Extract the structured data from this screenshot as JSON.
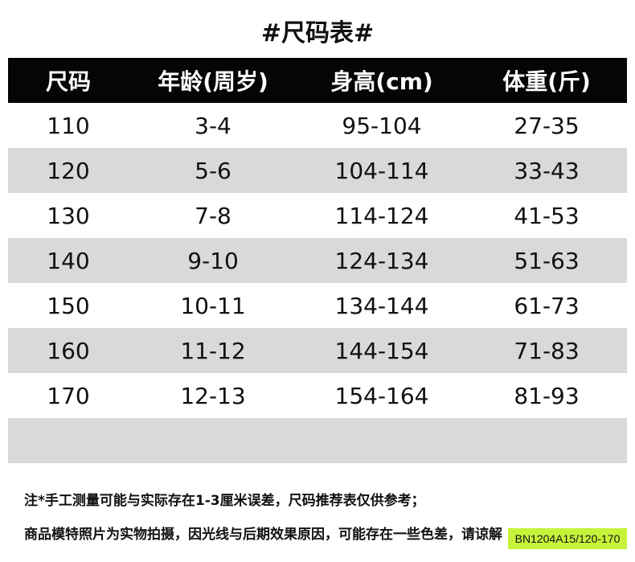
{
  "title": "#尺码表#",
  "headers": [
    "尺码",
    "年龄(周岁)",
    "身高(cm)",
    "体重(斤)"
  ],
  "rows": [
    [
      "110",
      "3-4",
      "95-104",
      "27-35"
    ],
    [
      "120",
      "5-6",
      "104-114",
      "33-43"
    ],
    [
      "130",
      "7-8",
      "114-124",
      "41-53"
    ],
    [
      "140",
      "9-10",
      "124-134",
      "51-63"
    ],
    [
      "150",
      "10-11",
      "134-144",
      "61-73"
    ],
    [
      "160",
      "11-12",
      "144-154",
      "71-83"
    ],
    [
      "170",
      "12-13",
      "154-164",
      "81-93"
    ]
  ],
  "notes": [
    "注*手工测量可能与实际存在1-3厘米误差，尺码推荐表仅供参考；",
    "商品模特照片为实物拍摄，因光线与后期效果原因，可能存在一些色差，请谅解"
  ],
  "badge": "BN1204A15/120-170",
  "colors": {
    "header_bg": "#050505",
    "alt_row": "#d9d9d9",
    "badge": "#c6f23a"
  }
}
